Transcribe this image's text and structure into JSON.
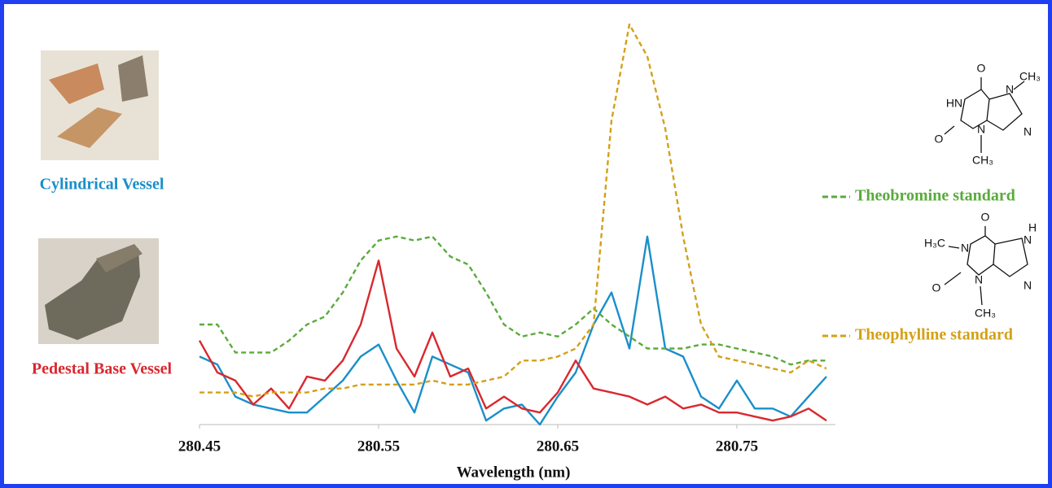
{
  "chart_data": {
    "type": "line",
    "x": [
      280.45,
      280.46,
      280.47,
      280.48,
      280.49,
      280.5,
      280.51,
      280.52,
      280.53,
      280.54,
      280.55,
      280.56,
      280.57,
      280.58,
      280.59,
      280.6,
      280.61,
      280.62,
      280.63,
      280.64,
      280.65,
      280.66,
      280.67,
      280.68,
      280.69,
      280.7,
      280.71,
      280.72,
      280.73,
      280.74,
      280.75,
      280.76,
      280.77,
      280.78,
      280.79,
      280.8
    ],
    "series": [
      {
        "name": "Cylindrical Vessel",
        "color": "#1a8fc9",
        "style": "solid",
        "values": [
          17,
          15,
          7,
          5,
          4,
          3,
          3,
          7,
          11,
          17,
          20,
          11,
          3,
          17,
          15,
          13,
          1,
          4,
          5,
          0,
          7,
          13,
          25,
          33,
          19,
          47,
          19,
          17,
          7,
          4,
          11,
          4,
          4,
          2,
          7,
          12
        ]
      },
      {
        "name": "Pedestal Base Vessel",
        "color": "#d9282f",
        "style": "solid",
        "values": [
          21,
          13,
          11,
          5,
          9,
          4,
          12,
          11,
          16,
          25,
          41,
          19,
          12,
          23,
          12,
          14,
          4,
          7,
          4,
          3,
          8,
          16,
          9,
          8,
          7,
          5,
          7,
          4,
          5,
          3,
          3,
          2,
          1,
          2,
          4,
          1
        ]
      },
      {
        "name": "Theobromine standard",
        "color": "#5aab3c",
        "style": "dashed",
        "values": [
          25,
          25,
          18,
          18,
          18,
          21,
          25,
          27,
          33,
          41,
          46,
          47,
          46,
          47,
          42,
          40,
          33,
          25,
          22,
          23,
          22,
          25,
          29,
          25,
          22,
          19,
          19,
          19,
          20,
          20,
          19,
          18,
          17,
          15,
          16,
          16
        ]
      },
      {
        "name": "Theophylline standard",
        "color": "#d4a017",
        "style": "dashed",
        "values": [
          8,
          8,
          8,
          7,
          8,
          8,
          8,
          9,
          9,
          10,
          10,
          10,
          10,
          11,
          10,
          10,
          11,
          12,
          16,
          16,
          17,
          19,
          25,
          76,
          100,
          92,
          74,
          47,
          25,
          17,
          16,
          15,
          14,
          13,
          16,
          14
        ]
      }
    ],
    "xlim": [
      280.45,
      280.805
    ],
    "ylim": [
      0,
      100
    ],
    "xticks": [
      280.45,
      280.55,
      280.65,
      280.75
    ],
    "x_label": "Wavelength (nm)"
  },
  "structures": [
    {
      "labels": [
        "O",
        "CH₃",
        "HN",
        "N",
        "N",
        "O",
        "N",
        "CH₃"
      ]
    },
    {
      "labels": [
        "O",
        "H₃C",
        "N",
        "H",
        "N",
        "N",
        "O",
        "N",
        "CH₃"
      ]
    }
  ]
}
